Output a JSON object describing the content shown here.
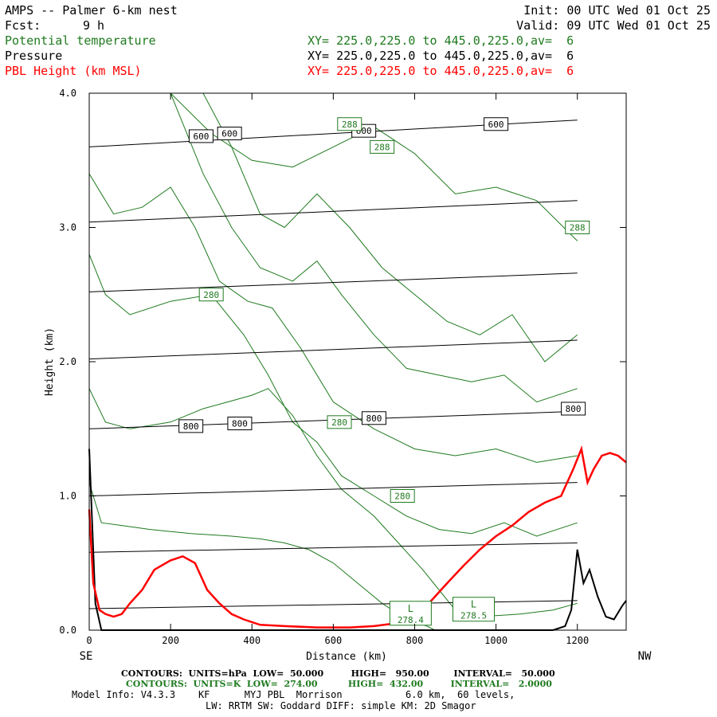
{
  "header": {
    "title": "AMPS -- Palmer 6-km nest",
    "init": "Init: 00 UTC Wed 01 Oct 25",
    "fcst_label": "Fcst:",
    "fcst_value": "9 h",
    "valid": "Valid: 09 UTC Wed 01 Oct 25",
    "fields": [
      {
        "name": "Potential temperature",
        "xy": "XY= 225.0,225.0 to 445.0,225.0,av=  6",
        "color": "#1f7a1f"
      },
      {
        "name": "Pressure",
        "xy": "XY= 225.0,225.0 to 445.0,225.0,av=  6",
        "color": "#000000"
      },
      {
        "name": "PBL Height (km MSL)",
        "xy": "XY= 225.0,225.0 to 445.0,225.0,av=  6",
        "color": "#ff0000"
      }
    ]
  },
  "chart_data": {
    "type": "line",
    "title": "AMPS -- Palmer 6-km nest cross section",
    "xlabel": "Distance (km)",
    "ylabel": "Height (km)",
    "xlim": [
      0,
      1320
    ],
    "ylim": [
      0,
      4
    ],
    "x_ticks": [
      0,
      200,
      400,
      600,
      800,
      1000,
      1200
    ],
    "x_tick_labels": [
      "0",
      "200",
      "400",
      "600",
      "800",
      "1000",
      "1200"
    ],
    "y_ticks": [
      0,
      1,
      2,
      3,
      4
    ],
    "y_tick_labels": [
      "0.0",
      "1.0",
      "2.0",
      "3.0",
      "4.0"
    ],
    "left_end_label": "SE",
    "right_end_label": "NW",
    "pbl_height": {
      "name": "PBL Height (km MSL)",
      "color": "#ff0000",
      "x": [
        0,
        10,
        25,
        40,
        60,
        80,
        100,
        130,
        160,
        200,
        230,
        260,
        290,
        320,
        350,
        380,
        420,
        480,
        560,
        640,
        700,
        750,
        790,
        820,
        850,
        880,
        920,
        960,
        1000,
        1040,
        1080,
        1120,
        1160,
        1190,
        1210,
        1225,
        1240,
        1260,
        1280,
        1300,
        1320
      ],
      "y": [
        0.9,
        0.35,
        0.15,
        0.12,
        0.1,
        0.12,
        0.2,
        0.3,
        0.45,
        0.52,
        0.55,
        0.5,
        0.3,
        0.2,
        0.12,
        0.08,
        0.04,
        0.03,
        0.02,
        0.02,
        0.03,
        0.05,
        0.08,
        0.15,
        0.25,
        0.35,
        0.48,
        0.6,
        0.7,
        0.78,
        0.88,
        0.95,
        1.0,
        1.2,
        1.35,
        1.1,
        1.2,
        1.3,
        1.32,
        1.3,
        1.25
      ]
    },
    "pressure_contours": [
      {
        "hPa": 950,
        "x": [
          0,
          1200
        ],
        "y": [
          0.16,
          0.22
        ]
      },
      {
        "hPa": 900,
        "x": [
          0,
          1200
        ],
        "y": [
          0.58,
          0.65
        ]
      },
      {
        "hPa": 850,
        "x": [
          0,
          1200
        ],
        "y": [
          1.0,
          1.1
        ]
      },
      {
        "hPa": 800,
        "x": [
          0,
          1200
        ],
        "y": [
          1.5,
          1.63
        ]
      },
      {
        "hPa": 750,
        "x": [
          0,
          1200
        ],
        "y": [
          2.02,
          2.16
        ]
      },
      {
        "hPa": 700,
        "x": [
          0,
          1200
        ],
        "y": [
          2.52,
          2.66
        ]
      },
      {
        "hPa": 650,
        "x": [
          0,
          1200
        ],
        "y": [
          3.04,
          3.2
        ]
      },
      {
        "hPa": 600,
        "x": [
          0,
          1200
        ],
        "y": [
          3.6,
          3.8
        ]
      }
    ],
    "pressure_labels": [
      {
        "text": "600",
        "x": 275,
        "y": 3.68
      },
      {
        "text": "600",
        "x": 345,
        "y": 3.7
      },
      {
        "text": "600",
        "x": 675,
        "y": 3.72
      },
      {
        "text": "600",
        "x": 1000,
        "y": 3.77
      },
      {
        "text": "800",
        "x": 250,
        "y": 1.52
      },
      {
        "text": "800",
        "x": 370,
        "y": 1.54
      },
      {
        "text": "800",
        "x": 700,
        "y": 1.58
      },
      {
        "text": "800",
        "x": 1190,
        "y": 1.65
      }
    ],
    "theta_contours": [
      {
        "K": 288,
        "x": [
          200,
          300,
          400,
          500,
          600,
          700,
          800,
          900,
          1000,
          1100,
          1200
        ],
        "y": [
          4.0,
          3.7,
          3.5,
          3.45,
          3.6,
          3.75,
          3.55,
          3.25,
          3.3,
          3.2,
          2.9
        ]
      },
      {
        "K": 286,
        "x": [
          280,
          350,
          420,
          480,
          560,
          640,
          720,
          800,
          880,
          960,
          1040,
          1120,
          1200
        ],
        "y": [
          4.0,
          3.6,
          3.1,
          3.0,
          3.25,
          3.0,
          2.7,
          2.5,
          2.3,
          2.2,
          2.35,
          2.0,
          2.2
        ]
      },
      {
        "K": 284,
        "x": [
          200,
          280,
          350,
          420,
          500,
          560,
          620,
          700,
          780,
          860,
          940,
          1020,
          1100,
          1200
        ],
        "y": [
          4.0,
          3.4,
          3.0,
          2.7,
          2.6,
          2.75,
          2.5,
          2.2,
          1.95,
          1.9,
          1.85,
          1.9,
          1.7,
          1.8
        ]
      },
      {
        "K": 282,
        "x": [
          0,
          60,
          130,
          200,
          260,
          320,
          390,
          450,
          520,
          600,
          700,
          800,
          900,
          1000,
          1100,
          1200
        ],
        "y": [
          3.4,
          3.1,
          3.15,
          3.3,
          3.0,
          2.6,
          2.45,
          2.4,
          2.1,
          1.7,
          1.5,
          1.35,
          1.3,
          1.35,
          1.25,
          1.3
        ]
      },
      {
        "K": 280,
        "x": [
          0,
          40,
          100,
          200,
          300,
          380,
          440,
          500,
          560,
          620,
          700,
          780,
          860,
          940,
          1020,
          1100,
          1200
        ],
        "y": [
          2.8,
          2.5,
          2.35,
          2.45,
          2.5,
          2.2,
          1.9,
          1.55,
          1.4,
          1.15,
          1.0,
          0.85,
          0.75,
          0.72,
          0.8,
          0.7,
          0.8
        ]
      },
      {
        "K": 278,
        "x": [
          0,
          40,
          100,
          200,
          280,
          340,
          400,
          440,
          500,
          560,
          620,
          700,
          760,
          820,
          860,
          900,
          960,
          1060,
          1140,
          1200
        ],
        "y": [
          1.8,
          1.55,
          1.5,
          1.55,
          1.65,
          1.7,
          1.75,
          1.8,
          1.6,
          1.3,
          1.05,
          0.85,
          0.65,
          0.45,
          0.3,
          0.15,
          0.1,
          0.12,
          0.15,
          0.2
        ]
      },
      {
        "K": 276,
        "x": [
          0,
          30,
          80,
          150,
          250,
          350,
          420,
          480,
          540,
          600,
          640,
          680,
          720,
          760,
          800,
          830,
          850
        ],
        "y": [
          1.1,
          0.8,
          0.78,
          0.75,
          0.72,
          0.7,
          0.68,
          0.65,
          0.6,
          0.5,
          0.4,
          0.3,
          0.2,
          0.12,
          0.06,
          0.03,
          0.0
        ]
      }
    ],
    "theta_labels": [
      {
        "text": "288",
        "x": 640,
        "y": 3.77
      },
      {
        "text": "288",
        "x": 720,
        "y": 3.6
      },
      {
        "text": "288",
        "x": 1200,
        "y": 3.0
      },
      {
        "text": "280",
        "x": 300,
        "y": 2.5
      },
      {
        "text": "280",
        "x": 615,
        "y": 1.55
      },
      {
        "text": "280",
        "x": 770,
        "y": 1.0
      }
    ],
    "extrema_labels": [
      {
        "letter": "L",
        "value": "278.4",
        "x": 790,
        "y": 0.12
      },
      {
        "letter": "L",
        "value": "278.5",
        "x": 945,
        "y": 0.15
      }
    ],
    "terrain": {
      "x": [
        0,
        15,
        30,
        1140,
        1170,
        1185,
        1200,
        1215,
        1230,
        1250,
        1270,
        1290,
        1310,
        1320
      ],
      "y": [
        1.35,
        0.2,
        0.0,
        0.0,
        0.03,
        0.15,
        0.6,
        0.35,
        0.45,
        0.25,
        0.1,
        0.08,
        0.18,
        0.22
      ]
    }
  },
  "footer": {
    "contours_pressure": "CONTOURS:  UNITS=hPa  LOW=  50.000         HIGH=   950.00        INTERVAL=   50.000",
    "contours_theta": "CONTOURS:  UNITS=K  LOW=  274.00          HIGH=  432.00         INTERVAL=   2.0000",
    "model_info": "Model Info: V4.3.3    KF      MYJ PBL  Morrison           6.0 km,  60 levels,",
    "model_info2": "LW: RRTM SW: Goddard DIFF: simple KM: 2D Smagor"
  }
}
